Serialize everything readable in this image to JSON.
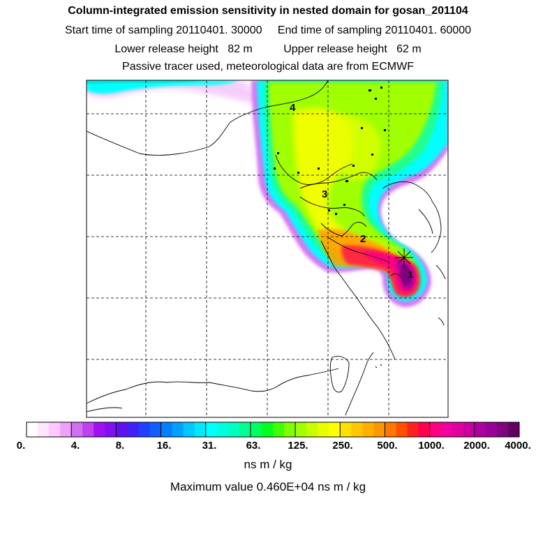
{
  "header": {
    "title": "Column-integrated emission sensitivity in nested domain for gosan_201104",
    "start_time": "Start time of sampling 20110401. 30000",
    "end_time": "End time of sampling 20110401. 60000",
    "lower_height": "Lower release height   82 m",
    "upper_height": "Upper release height   62 m",
    "tracer_note": "Passive tracer used, meteorological data are from ECMWF"
  },
  "map": {
    "site_labels": [
      "1",
      "2",
      "3",
      "4"
    ],
    "release_marker": "star"
  },
  "colorbar": {
    "labels": [
      "0.",
      "4.",
      "8.",
      "16.",
      "31.",
      "63.",
      "125.",
      "250.",
      "500.",
      "1000.",
      "2000.",
      "4000."
    ],
    "colors": [
      "#ffffff",
      "#ffe6ff",
      "#ffc8ff",
      "#f0a0f8",
      "#d070f0",
      "#c040f0",
      "#a010f0",
      "#8010f0",
      "#6010f0",
      "#4020f8",
      "#2040ff",
      "#1060ff",
      "#0080ff",
      "#00a0ff",
      "#00c8ff",
      "#00e8ff",
      "#00ffff",
      "#00ffe0",
      "#00ffc0",
      "#00ff90",
      "#00ff60",
      "#00ff20",
      "#40ff00",
      "#80ff00",
      "#a0ff00",
      "#c8ff00",
      "#e8ff00",
      "#ffff00",
      "#ffe000",
      "#ffc800",
      "#ffb000",
      "#ff9600",
      "#ff7800",
      "#ff5000",
      "#ff2020",
      "#ff0050",
      "#ff0080",
      "#f000a0",
      "#e000a0",
      "#c800a0",
      "#b000a0",
      "#980098",
      "#800080",
      "#600060"
    ],
    "units": "ns m / kg"
  },
  "max_value": "Maximum value  0.460E+04 ns m / kg"
}
